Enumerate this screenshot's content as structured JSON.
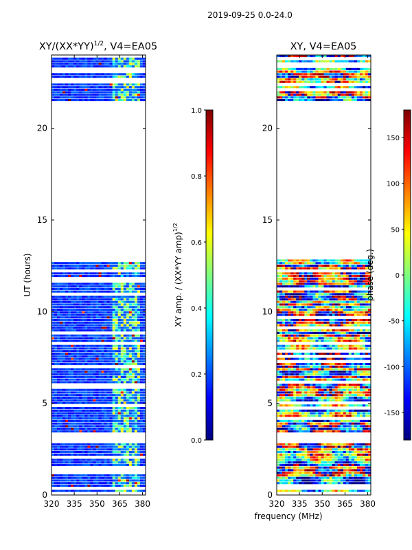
{
  "figure": {
    "suptitle": "2019-09-25 0.0-24.0",
    "shared_xlabel": "frequency (MHz)"
  },
  "colors": {
    "jet": [
      "#00007f",
      "#0000ff",
      "#007fff",
      "#00ffff",
      "#7fff7f",
      "#ffff00",
      "#ff7f00",
      "#ff0000",
      "#7f0000"
    ],
    "frame": "#000000",
    "background": "#ffffff"
  },
  "chart_data": [
    {
      "type": "heatmap",
      "title_main": "XY/(XX*YY)",
      "title_sup": "1/2",
      "title_tail": ", V4=EA05",
      "xlabel": "",
      "ylabel": "UT (hours)",
      "xlim": [
        320,
        382
      ],
      "ylim": [
        0,
        24
      ],
      "xticks": [
        320,
        335,
        350,
        365,
        380
      ],
      "yticks": [
        0,
        5,
        10,
        15,
        20
      ],
      "colorbar": {
        "label": "XY amp. / (XX*YY amp)",
        "label_sup": "1/2",
        "range": [
          0.0,
          1.0
        ],
        "ticks": [
          "0.0",
          "0.2",
          "0.4",
          "0.6",
          "0.8",
          "1.0"
        ]
      },
      "data_gaps_hours": [
        [
          2.85,
          3.2
        ],
        [
          12.85,
          21.5
        ]
      ],
      "note": "normalized cross-correlation amplitude mostly 0.0-0.3 (dark blue) with brighter channels near 362-378 MHz"
    },
    {
      "type": "heatmap",
      "title_main": "XY, V4=EA05",
      "xlabel": "",
      "ylabel": "",
      "xlim": [
        320,
        382
      ],
      "ylim": [
        0,
        24
      ],
      "xticks": [
        320,
        335,
        350,
        365,
        380
      ],
      "yticks": [
        0,
        5,
        10,
        15,
        20
      ],
      "colorbar": {
        "label": "phase (deg.)",
        "range": [
          -180,
          180
        ],
        "ticks": [
          -150,
          -100,
          -50,
          0,
          50,
          100,
          150
        ]
      },
      "data_gaps_hours": [
        [
          2.85,
          3.2
        ],
        [
          12.85,
          21.5
        ]
      ],
      "note": "cross-hand phase spanning full -180 to 180 deg range"
    }
  ]
}
